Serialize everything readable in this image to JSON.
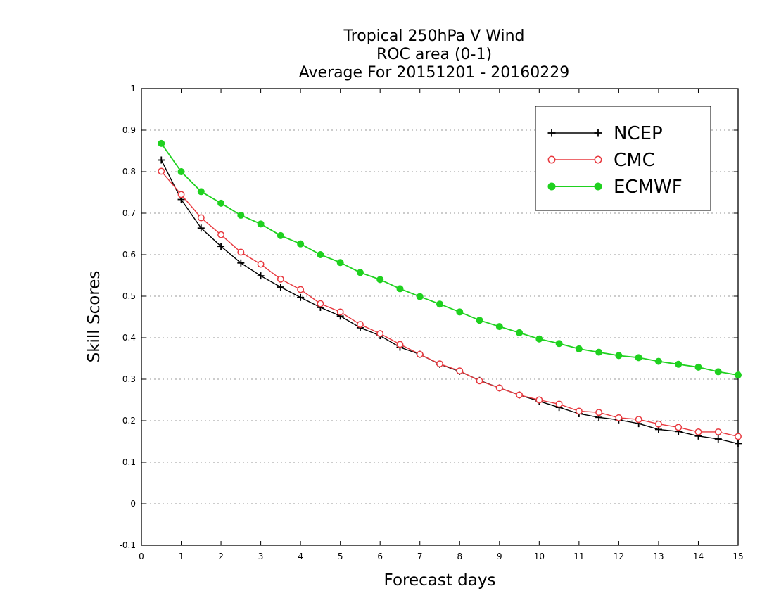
{
  "chart_data": {
    "type": "line",
    "title_lines": [
      "Tropical 250hPa V Wind",
      "ROC area (0-1)",
      "Average For 20151201 - 20160229"
    ],
    "xlabel": "Forecast days",
    "ylabel": "Skill Scores",
    "xlim": [
      0,
      15
    ],
    "ylim": [
      -0.1,
      1
    ],
    "x_ticks": [
      "0",
      "1",
      "2",
      "3",
      "4",
      "5",
      "6",
      "7",
      "8",
      "9",
      "10",
      "11",
      "12",
      "13",
      "14",
      "15"
    ],
    "y_ticks": [
      "-0.1",
      "0",
      "0.1",
      "0.2",
      "0.3",
      "0.4",
      "0.5",
      "0.6",
      "0.7",
      "0.8",
      "0.9",
      "1"
    ],
    "grid": "horizontal dotted",
    "legend_position": "top-right",
    "x": [
      0.5,
      1,
      1.5,
      2,
      2.5,
      3,
      3.5,
      4,
      4.5,
      5,
      5.5,
      6,
      6.5,
      7,
      7.5,
      8,
      8.5,
      9,
      9.5,
      10,
      10.5,
      11,
      11.5,
      12,
      12.5,
      13,
      13.5,
      14,
      14.5,
      15
    ],
    "series": [
      {
        "name": "NCEP",
        "color": "#000000",
        "marker": "plus",
        "values": [
          0.828,
          0.733,
          0.664,
          0.62,
          0.58,
          0.549,
          0.522,
          0.497,
          0.473,
          0.452,
          0.424,
          0.405,
          0.377,
          0.36,
          0.336,
          0.319,
          0.297,
          0.279,
          0.262,
          0.247,
          0.232,
          0.217,
          0.208,
          0.202,
          0.193,
          0.179,
          0.174,
          0.163,
          0.156,
          0.145
        ]
      },
      {
        "name": "CMC",
        "color": "#e8393f",
        "marker": "open-circle",
        "values": [
          0.801,
          0.745,
          0.689,
          0.648,
          0.606,
          0.577,
          0.541,
          0.516,
          0.482,
          0.462,
          0.432,
          0.41,
          0.384,
          0.36,
          0.337,
          0.32,
          0.296,
          0.279,
          0.262,
          0.25,
          0.24,
          0.223,
          0.22,
          0.207,
          0.203,
          0.192,
          0.184,
          0.173,
          0.173,
          0.162
        ]
      },
      {
        "name": "ECMWF",
        "color": "#1fd11f",
        "marker": "filled-circle",
        "values": [
          0.868,
          0.8,
          0.752,
          0.724,
          0.695,
          0.674,
          0.646,
          0.626,
          0.6,
          0.581,
          0.557,
          0.54,
          0.518,
          0.499,
          0.481,
          0.462,
          0.442,
          0.427,
          0.412,
          0.397,
          0.386,
          0.373,
          0.365,
          0.357,
          0.352,
          0.343,
          0.336,
          0.329,
          0.318,
          0.31
        ]
      }
    ]
  }
}
